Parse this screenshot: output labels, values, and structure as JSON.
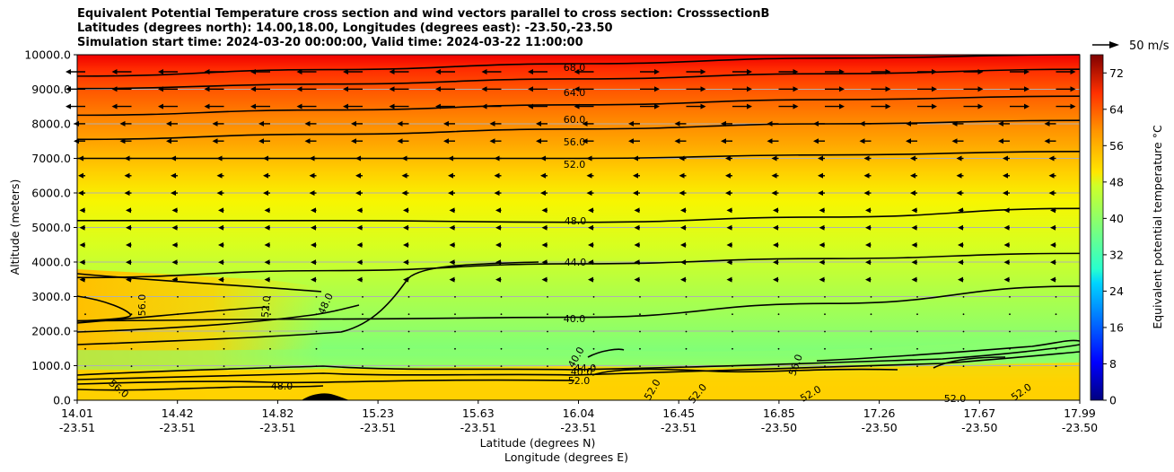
{
  "chart_data": {
    "type": "heatmap",
    "title": [
      "Equivalent Potential Temperature cross section and wind vectors parallel to cross section: CrosssectionB",
      "Latitudes (degrees north): 14.00,18.00, Longitudes (degrees east): -23.50,-23.50",
      "Simulation start time: 2024-03-20 00:00:00, Valid time: 2024-03-22 11:00:00"
    ],
    "xlabel": "Latitude (degrees N)",
    "xlabel2": "Longitude (degrees E)",
    "ylabel": "Altitude (meters)",
    "x_ticks": [
      {
        "lat": "14.01",
        "lon": "-23.51"
      },
      {
        "lat": "14.42",
        "lon": "-23.51"
      },
      {
        "lat": "14.82",
        "lon": "-23.51"
      },
      {
        "lat": "15.23",
        "lon": "-23.51"
      },
      {
        "lat": "15.63",
        "lon": "-23.51"
      },
      {
        "lat": "16.04",
        "lon": "-23.51"
      },
      {
        "lat": "16.45",
        "lon": "-23.51"
      },
      {
        "lat": "16.85",
        "lon": "-23.50"
      },
      {
        "lat": "17.26",
        "lon": "-23.50"
      },
      {
        "lat": "17.67",
        "lon": "-23.50"
      },
      {
        "lat": "17.99",
        "lon": "-23.50"
      }
    ],
    "y_ticks": [
      "0.0",
      "1000.0",
      "2000.0",
      "3000.0",
      "4000.0",
      "5000.0",
      "6000.0",
      "7000.0",
      "8000.0",
      "9000.0",
      "10000.0"
    ],
    "ylim": [
      0,
      10000
    ],
    "colorbar": {
      "label": "Equivalent potential temperature $^\\circ$C",
      "ticks": [
        "0",
        "8",
        "16",
        "24",
        "32",
        "40",
        "48",
        "56",
        "64",
        "72"
      ],
      "range": [
        0,
        76
      ]
    },
    "quiver_key": "50 m/s",
    "contour_labels": [
      "68.0",
      "64.0",
      "60.0",
      "56.0",
      "52.0",
      "48.0",
      "44.0",
      "40.0",
      "56.0",
      "52.0",
      "48.0",
      "40.0",
      "48.0",
      "52.0",
      "56.0",
      "52.0",
      "52.0",
      "56.0",
      "52.0",
      "52.0",
      "52.0",
      "40.0",
      "44.0"
    ],
    "contours": [
      {
        "label": "68.0",
        "alt": [
          9380,
          9570,
          9740,
          9900,
          10000
        ]
      },
      {
        "label": "64.0",
        "alt": [
          9020,
          9150,
          9300,
          9450,
          9580
        ]
      },
      {
        "label": "60.0",
        "alt": [
          8250,
          8400,
          8550,
          8700,
          8800
        ]
      },
      {
        "label": "56.0",
        "alt": [
          7550,
          7700,
          7850,
          8000,
          8100
        ]
      },
      {
        "label": "52.0",
        "alt": [
          7000,
          7000,
          7000,
          7100,
          7200
        ]
      },
      {
        "label": "48.0",
        "alt": [
          5200,
          5200,
          5150,
          5300,
          5550
        ]
      },
      {
        "label": "44.0",
        "alt": [
          3550,
          3750,
          3950,
          4100,
          4250
        ]
      },
      {
        "label": "40.0",
        "alt": [
          2300,
          2350,
          2400,
          2800,
          3300
        ]
      }
    ]
  }
}
